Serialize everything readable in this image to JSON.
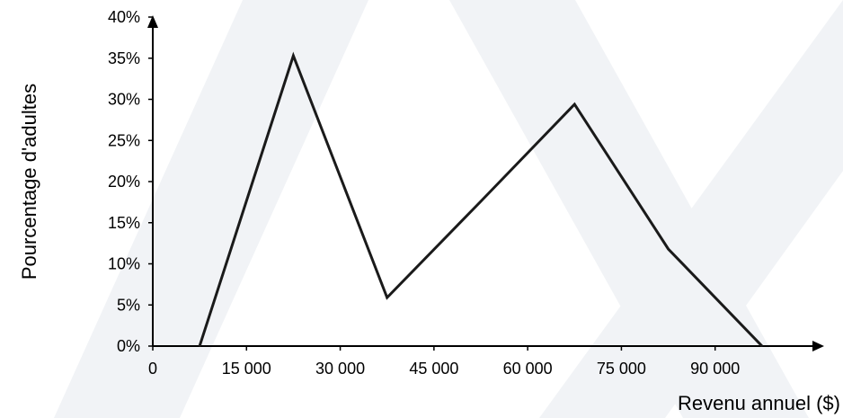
{
  "chart_data": {
    "type": "line",
    "title": "",
    "xlabel": "Revenu annuel ($)",
    "ylabel": "Pourcentage d'adultes",
    "x": [
      7500,
      22500,
      37500,
      52500,
      67500,
      82500,
      97500
    ],
    "series": [
      {
        "values": [
          0,
          35.3,
          5.9,
          17.6,
          29.4,
          11.8,
          0
        ]
      }
    ],
    "xlim": [
      0,
      105000
    ],
    "ylim": [
      0,
      40
    ],
    "x_ticks": [
      0,
      15000,
      30000,
      45000,
      60000,
      75000,
      90000
    ],
    "x_tick_labels": [
      "0",
      "15 000",
      "30 000",
      "45 000",
      "60 000",
      "75 000",
      "90 000"
    ],
    "y_ticks": [
      0,
      5,
      10,
      15,
      20,
      25,
      30,
      35,
      40
    ],
    "y_tick_labels": [
      "0%",
      "5%",
      "10%",
      "15%",
      "20%",
      "25%",
      "30%",
      "35%",
      "40%"
    ],
    "grid": false,
    "colors": {
      "line": "#1a1a1a",
      "axis": "#000000",
      "watermark": "#f1f3f6"
    }
  }
}
